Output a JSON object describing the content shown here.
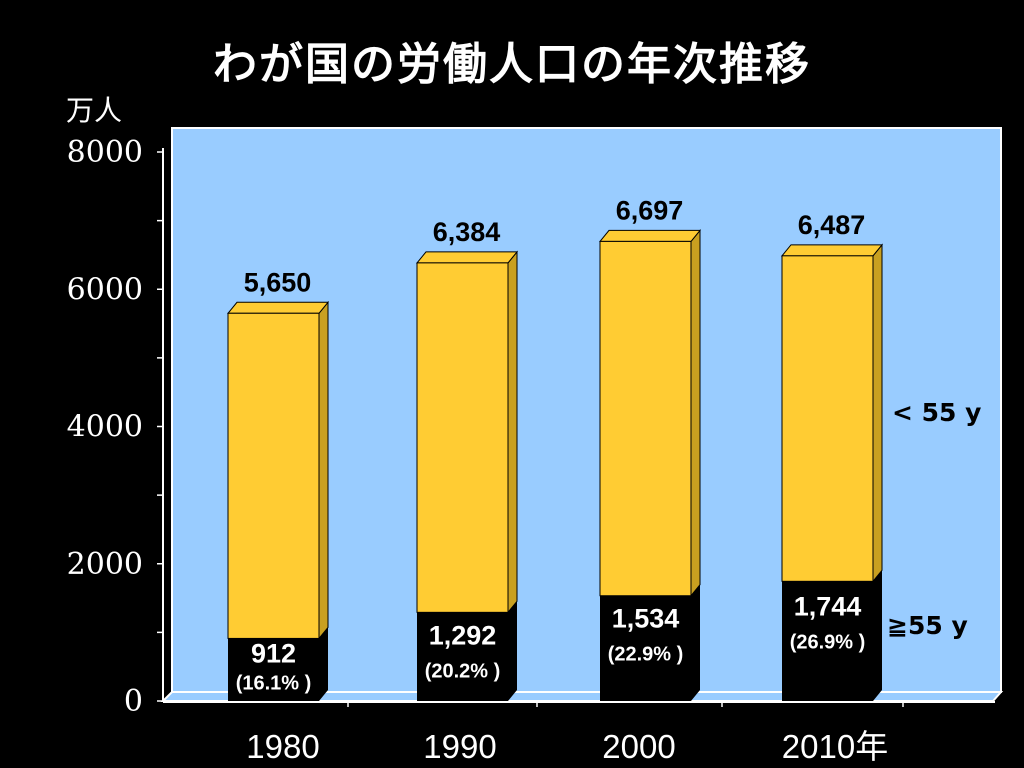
{
  "title": "わが国の労働人口の年次推移",
  "colors": {
    "background": "#000000",
    "plot_area": "#99ccff",
    "bar_upper": "#ffcc33",
    "bar_upper_dark": "#c9a020",
    "bar_lower": "#000000",
    "text_light": "#ffffff",
    "text_dark": "#000000"
  },
  "chart_data": {
    "type": "bar",
    "stacked": true,
    "style": "3d",
    "ylabel": "万人",
    "ylim": [
      0,
      8000
    ],
    "yticks": [
      0,
      2000,
      4000,
      6000,
      8000
    ],
    "categories": [
      "1980",
      "1990",
      "2000",
      "2010年"
    ],
    "series": [
      {
        "name": "≧55 y",
        "values": [
          912,
          1292,
          1534,
          1744
        ],
        "value_labels": [
          "912",
          "1,292",
          "1,534",
          "1,744"
        ],
        "share_labels": [
          "(16.1% )",
          "(20.2% )",
          "(22.9% )",
          "(26.9% )"
        ],
        "shares_percent": [
          16.1,
          20.2,
          22.9,
          26.9
        ]
      },
      {
        "name": "< 55 y",
        "values": [
          4738,
          5092,
          5163,
          4743
        ]
      }
    ],
    "totals": [
      5650,
      6384,
      6697,
      6487
    ],
    "total_labels": [
      "5,650",
      "6,384",
      "6,697",
      "6,487"
    ],
    "grid": false,
    "legend": "right"
  }
}
